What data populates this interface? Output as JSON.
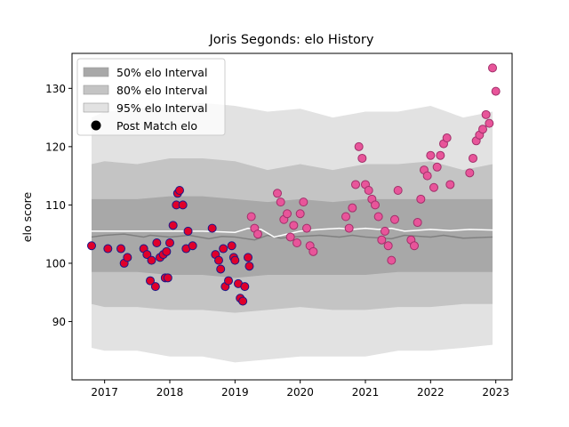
{
  "chart_data": {
    "type": "scatter",
    "title": "Joris Segonds: elo History",
    "xlabel": "",
    "ylabel": "elo score",
    "xlim": [
      2016.5,
      2023.25
    ],
    "ylim": [
      80,
      136
    ],
    "x_ticks": [
      2017,
      2018,
      2019,
      2020,
      2021,
      2022,
      2023
    ],
    "x_tick_labels": [
      "2017",
      "2018",
      "2019",
      "2020",
      "2021",
      "2022",
      "2023"
    ],
    "y_ticks": [
      90,
      100,
      110,
      120,
      130
    ],
    "y_tick_labels": [
      "90",
      "100",
      "110",
      "120",
      "130"
    ],
    "grid": false,
    "legend": {
      "placement": "top-left",
      "entries": [
        "50% elo Interval",
        "80% elo Interval",
        "95% elo Interval",
        "Post Match elo"
      ]
    },
    "colors": {
      "band_50": "#a8a8a8",
      "band_80": "#c4c4c4",
      "band_95": "#e2e2e2",
      "median_line": "#808080",
      "mean_line": "#ffffff",
      "marker_face_early": "#e0002a",
      "marker_edge_early": "#1a1a8a",
      "marker_face_late": "#e8559a",
      "marker_edge_late": "#a0306a"
    },
    "bands": {
      "x": [
        2016.8,
        2017.0,
        2017.5,
        2018.0,
        2018.5,
        2019.0,
        2019.5,
        2020.0,
        2020.5,
        2021.0,
        2021.5,
        2022.0,
        2022.5,
        2022.95
      ],
      "p95_upper": [
        125,
        126,
        126.5,
        127,
        127.5,
        127,
        126,
        126.5,
        125,
        126,
        126,
        127,
        125,
        126
      ],
      "p95_lower": [
        85.5,
        85,
        85,
        84,
        84,
        83,
        83.5,
        84,
        84,
        84,
        85,
        85,
        85.5,
        86
      ],
      "p80_upper": [
        117,
        117.5,
        117,
        118,
        118,
        117.5,
        116,
        117,
        116,
        117,
        117,
        117.5,
        116,
        117
      ],
      "p80_lower": [
        93,
        92.5,
        92.5,
        92,
        92,
        91.5,
        92,
        92.5,
        92,
        92,
        92.5,
        92.5,
        93,
        93
      ],
      "p50_upper": [
        111,
        111,
        111,
        111.5,
        111.5,
        111,
        110.5,
        111,
        110.5,
        111,
        111,
        111,
        111,
        111
      ],
      "p50_lower": [
        98.5,
        98.5,
        98.5,
        98,
        98,
        97.5,
        98,
        98,
        98,
        98,
        98.5,
        98.5,
        98.5,
        98.5
      ]
    },
    "median_line": {
      "x": [
        2016.8,
        2017.0,
        2017.3,
        2017.6,
        2017.7,
        2018.0,
        2018.3,
        2018.6,
        2018.8,
        2019.0,
        2019.3,
        2019.5,
        2019.7,
        2020.0,
        2020.3,
        2020.6,
        2020.8,
        2021.0,
        2021.4,
        2021.6,
        2022.0,
        2022.2,
        2022.5,
        2022.95
      ],
      "y": [
        104.5,
        104.8,
        105.0,
        104.5,
        104.8,
        104.5,
        104.8,
        104.2,
        104.6,
        104.5,
        104.0,
        104.8,
        104.3,
        104.6,
        104.8,
        104.5,
        104.8,
        104.5,
        104.2,
        104.8,
        104.5,
        104.8,
        104.3,
        104.5
      ]
    },
    "mean_line": {
      "x": [
        2016.8,
        2017.0,
        2017.5,
        2018.0,
        2018.5,
        2019.0,
        2019.2,
        2019.4,
        2019.6,
        2019.8,
        2020.0,
        2020.3,
        2020.6,
        2020.8,
        2021.0,
        2021.2,
        2021.4,
        2021.6,
        2022.0,
        2022.3,
        2022.6,
        2022.95
      ],
      "y": [
        105.5,
        105.5,
        105.5,
        105.5,
        105.5,
        105.3,
        106.0,
        105.8,
        104.5,
        105.0,
        105.5,
        105.8,
        106.0,
        105.8,
        106.0,
        105.8,
        106.0,
        105.5,
        105.8,
        105.6,
        105.8,
        105.7
      ]
    },
    "points_early": {
      "x": [
        2016.8,
        2017.05,
        2017.25,
        2017.3,
        2017.35,
        2017.6,
        2017.65,
        2017.7,
        2017.72,
        2017.78,
        2017.8,
        2017.85,
        2017.9,
        2017.93,
        2017.95,
        2017.97,
        2018.0,
        2018.05,
        2018.1,
        2018.12,
        2018.15,
        2018.2,
        2018.25,
        2018.28,
        2018.35,
        2018.65,
        2018.7,
        2018.75,
        2018.78,
        2018.82,
        2018.85,
        2018.9,
        2018.95,
        2018.98,
        2019.0,
        2019.05,
        2019.08,
        2019.12,
        2019.15,
        2019.2,
        2019.22
      ],
      "y": [
        103,
        102.5,
        102.5,
        100,
        101,
        102.5,
        101.5,
        97,
        100.5,
        96,
        103.5,
        101,
        101.5,
        97.5,
        102,
        97.5,
        103.5,
        106.5,
        110,
        112,
        112.5,
        110,
        102.5,
        105.5,
        103,
        106,
        101.5,
        100.5,
        99,
        102.5,
        96,
        97,
        103,
        101,
        100.5,
        96.5,
        94,
        93.5,
        96,
        101,
        99.5
      ]
    },
    "points_late": {
      "x": [
        2019.25,
        2019.3,
        2019.35,
        2019.65,
        2019.7,
        2019.75,
        2019.8,
        2019.85,
        2019.9,
        2019.95,
        2020.0,
        2020.05,
        2020.1,
        2020.15,
        2020.2,
        2020.7,
        2020.75,
        2020.8,
        2020.85,
        2020.9,
        2020.95,
        2021.0,
        2021.05,
        2021.1,
        2021.15,
        2021.2,
        2021.25,
        2021.3,
        2021.35,
        2021.4,
        2021.45,
        2021.5,
        2021.7,
        2021.75,
        2021.8,
        2021.85,
        2021.9,
        2021.95,
        2022.0,
        2022.05,
        2022.1,
        2022.15,
        2022.2,
        2022.25,
        2022.3,
        2022.6,
        2022.65,
        2022.7,
        2022.75,
        2022.8,
        2022.85,
        2022.9,
        2022.95,
        2023.0
      ],
      "y": [
        108,
        106,
        105,
        112,
        110.5,
        107.5,
        108.5,
        104.5,
        106.5,
        103.5,
        108.5,
        110.5,
        106,
        103,
        102,
        108,
        106,
        109.5,
        113.5,
        120,
        118,
        113.5,
        112.5,
        111,
        110,
        108,
        104,
        105.5,
        103,
        100.5,
        107.5,
        112.5,
        104,
        103,
        107,
        111,
        116,
        115,
        118.5,
        113,
        116.5,
        118.5,
        120.5,
        121.5,
        113.5,
        115.5,
        118,
        121,
        122,
        123,
        125.5,
        124,
        133.5,
        129.5
      ]
    }
  }
}
